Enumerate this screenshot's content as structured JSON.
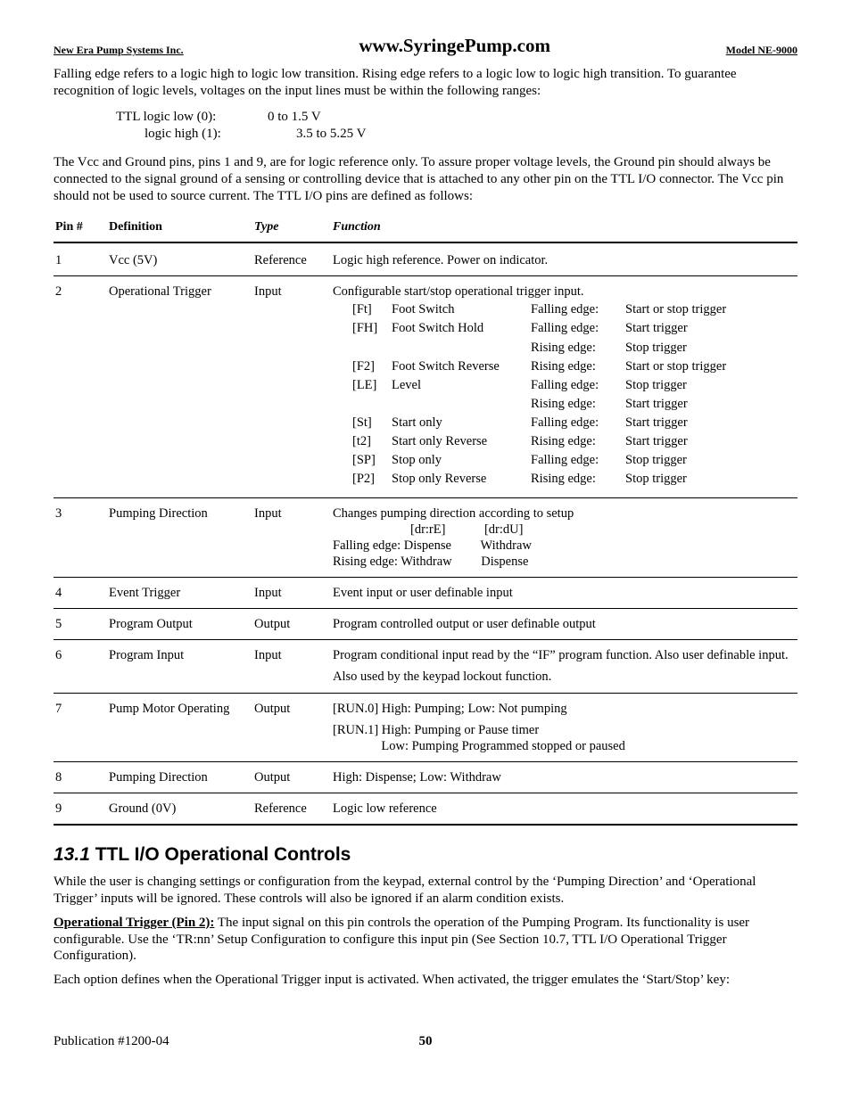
{
  "header": {
    "left": "New Era Pump Systems Inc.",
    "center": "www.SyringePump.com",
    "right": "Model NE-9000"
  },
  "intro": {
    "p1": "Falling edge refers to a logic high to logic low transition.  Rising edge refers to a logic low to logic high transition.  To guarantee recognition of logic levels, voltages on the input lines must be within the following ranges:",
    "ttl_low_label": "TTL  logic low (0):",
    "ttl_low_val": "0 to 1.5 V",
    "ttl_high_label": "logic high (1):",
    "ttl_high_val": "3.5 to 5.25 V",
    "p2": "The Vcc and Ground pins, pins 1 and 9, are for logic reference only.  To assure proper voltage levels, the Ground pin should always be connected to the signal ground of a sensing or controlling device that is attached to any other pin on the TTL I/O connector.  The Vcc pin should not be used to source current.  The TTL I/O pins are defined as follows:"
  },
  "table": {
    "h_pin": "Pin #",
    "h_def": "Definition",
    "h_type": "Type",
    "h_func": "Function",
    "rows": [
      {
        "pin": "1",
        "def": "Vcc (5V)",
        "type": "Reference",
        "func": "Logic high reference.  Power on indicator."
      },
      {
        "pin": "2",
        "def": "Operational Trigger",
        "type": "Input",
        "func_intro": "Configurable start/stop operational trigger input.",
        "cfg": [
          {
            "code": "[Ft]",
            "name": "Foot Switch",
            "edge": "Falling edge:",
            "act": "Start or stop trigger"
          },
          {
            "code": "[FH]",
            "name": "Foot Switch Hold",
            "edge": "Falling edge:",
            "act": "Start trigger"
          },
          {
            "code": "",
            "name": "",
            "edge": "Rising edge:",
            "act": "Stop trigger"
          },
          {
            "code": "[F2]",
            "name": "Foot Switch Reverse",
            "edge": "Rising  edge:",
            "act": "Start or stop trigger"
          },
          {
            "code": "[LE]",
            "name": "Level",
            "edge": "Falling edge:",
            "act": "Stop trigger"
          },
          {
            "code": "",
            "name": "",
            "edge": "Rising edge:",
            "act": "Start trigger"
          },
          {
            "code": "[St]",
            "name": "Start only",
            "edge": "Falling edge:",
            "act": "Start trigger"
          },
          {
            "code": "[t2]",
            "name": "Start only Reverse",
            "edge": "Rising edge:",
            "act": "Start trigger"
          },
          {
            "code": "[SP]",
            "name": "Stop only",
            "edge": "Falling edge:",
            "act": "Stop trigger"
          },
          {
            "code": "[P2]",
            "name": "Stop only Reverse",
            "edge": "Rising edge:",
            "act": "Stop trigger"
          }
        ]
      },
      {
        "pin": "3",
        "def": "Pumping Direction",
        "type": "Input",
        "func_lines": [
          "Changes pumping direction according to setup",
          "                        [dr:rE]            [dr:dU]",
          "Falling edge: Dispense         Withdraw",
          "Rising edge: Withdraw         Dispense"
        ]
      },
      {
        "pin": "4",
        "def": "Event Trigger",
        "type": "Input",
        "func": "Event input or user definable input"
      },
      {
        "pin": "5",
        "def": "Program Output",
        "type": "Output",
        "func": "Program controlled output or user definable output"
      },
      {
        "pin": "6",
        "def": "Program Input",
        "type": "Input",
        "func_lines": [
          "Program conditional input read by the “IF” program function.  Also user definable input.",
          "",
          "Also used by the keypad lockout function."
        ]
      },
      {
        "pin": "7",
        "def": "Pump Motor Operating",
        "type": "Output",
        "func_lines": [
          "[RUN.0]  High: Pumping;  Low:  Not pumping",
          "",
          "[RUN.1]  High: Pumping or Pause timer",
          "               Low:  Pumping Programmed stopped or paused"
        ]
      },
      {
        "pin": "8",
        "def": "Pumping Direction",
        "type": "Output",
        "func": "High: Dispense;  Low: Withdraw"
      },
      {
        "pin": "9",
        "def": "Ground (0V)",
        "type": "Reference",
        "func": "Logic low reference"
      }
    ]
  },
  "section": {
    "num": "13.1",
    "title": "TTL I/O Operational Controls",
    "p1": "While the user is changing settings or configuration from the keypad, external control by the ‘Pumping Direction’ and ‘Operational Trigger’ inputs will be ignored.  These controls will also be ignored if an alarm condition exists.",
    "p2_lead": "Operational Trigger (Pin 2):",
    "p2_rest": "  The input signal on this pin controls the operation of the Pumping Program.  Its functionality is user configurable.  Use the ‘TR:nn’ Setup Configuration to configure this input pin (See Section 10.7, TTL I/O Operational Trigger Configuration).",
    "p3": "Each option defines when the Operational Trigger input is activated.  When activated, the trigger emulates the ‘Start/Stop’ key:"
  },
  "footer": {
    "left": "Publication  #1200-04",
    "page": "50"
  }
}
